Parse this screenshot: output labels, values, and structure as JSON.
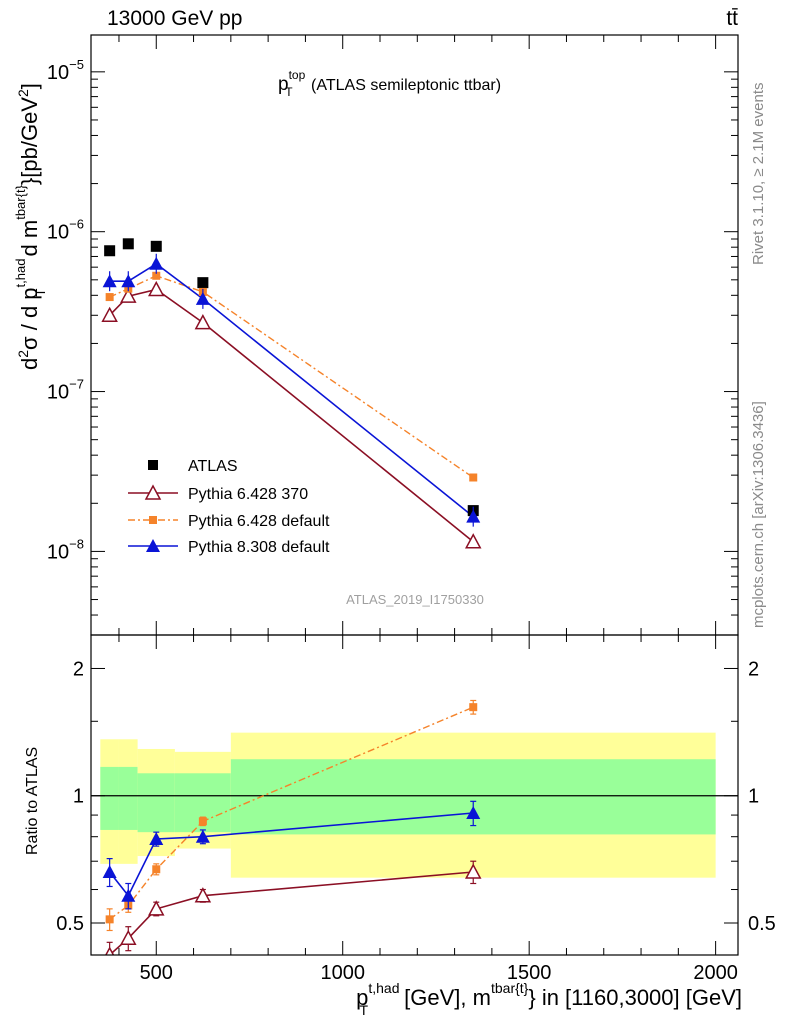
{
  "header": {
    "left": "13000 GeV pp",
    "right": "tt̄"
  },
  "side": {
    "top": "Rivet 3.1.10, ≥ 2.1M events",
    "bottom": "mcplots.cern.ch [arXiv:1306.3436]"
  },
  "title": {
    "main": "p",
    "sup": "top",
    "sub": "T",
    "rest": " (ATLAS semileptonic ttbar)"
  },
  "watermark": "ATLAS_2019_I1750330",
  "ylabel_main": {
    "p1": "d",
    "p1sup": "2",
    "p2": "σ /  d p",
    "p2sup": "t,had",
    "p2sub": "T",
    "p3": " d m",
    "p3sup": "tbar{t}",
    "p4": "}[pb/GeV",
    "p4sup": "2",
    "p5": "]"
  },
  "ylabel_ratio": "Ratio to ATLAS",
  "xlabel": {
    "p1": "p",
    "p1sup": "t,had",
    "p1sub": "T",
    "p2": " [GeV], m",
    "p2sup": "tbar{t}",
    "p3": "} in [1160,3000] [GeV]"
  },
  "main_ticks": [
    {
      "base": "10",
      "exp": "−5",
      "value": 1e-05
    },
    {
      "base": "10",
      "exp": "−6",
      "value": 1e-06
    },
    {
      "base": "10",
      "exp": "−7",
      "value": 1e-07
    },
    {
      "base": "10",
      "exp": "−8",
      "value": 1e-08
    }
  ],
  "ratio_ticks": [
    {
      "label": "2",
      "value": 2
    },
    {
      "label": "1",
      "value": 1
    },
    {
      "label": "0.5",
      "value": 0.5
    }
  ],
  "x_ticks": [
    {
      "label": "500",
      "value": 500
    },
    {
      "label": "1000",
      "value": 1000
    },
    {
      "label": "1500",
      "value": 1500
    },
    {
      "label": "2000",
      "value": 2000
    }
  ],
  "legend": [
    {
      "label": "ATLAS"
    },
    {
      "label": "Pythia 6.428 370"
    },
    {
      "label": "Pythia 6.428 default"
    },
    {
      "label": "Pythia 8.308 default"
    }
  ],
  "chart_data": {
    "type": "scatter",
    "xlim": [
      325,
      2060
    ],
    "ylim_main": [
      3e-09,
      1.7e-05
    ],
    "ylim_ratio": [
      0.42,
      2.4
    ],
    "x": [
      375,
      425,
      500,
      625,
      1350
    ],
    "bins": [
      [
        350,
        400
      ],
      [
        400,
        450
      ],
      [
        450,
        550
      ],
      [
        550,
        700
      ],
      [
        700,
        2000
      ]
    ],
    "series": [
      {
        "name": "ATLAS",
        "color": "#000000",
        "values": [
          7.6e-07,
          8.4e-07,
          8.1e-07,
          4.8e-07,
          1.8e-08
        ]
      },
      {
        "name": "Pythia 6.428 370",
        "color": "#8b0f24",
        "values": [
          3e-07,
          3.95e-07,
          4.35e-07,
          2.7e-07,
          1.15e-08
        ],
        "ratio": [
          0.42,
          0.46,
          0.54,
          0.58,
          0.66
        ],
        "ratio_err": [
          0.03,
          0.03,
          0.02,
          0.02,
          0.04
        ]
      },
      {
        "name": "Pythia 6.428 default",
        "color": "#f5832a",
        "values": [
          3.9e-07,
          4.4e-07,
          5.3e-07,
          4.2e-07,
          2.9e-08
        ],
        "ratio": [
          0.51,
          0.55,
          0.67,
          0.87,
          1.62
        ],
        "ratio_err": [
          0.03,
          0.02,
          0.02,
          0.02,
          0.06
        ]
      },
      {
        "name": "Pythia 8.308 default",
        "color": "#0a14d6",
        "values": [
          4.9e-07,
          4.9e-07,
          6.3e-07,
          3.8e-07,
          1.65e-08
        ],
        "ratio": [
          0.66,
          0.58,
          0.79,
          0.8,
          0.91
        ],
        "ratio_err": [
          0.05,
          0.04,
          0.03,
          0.03,
          0.06
        ]
      }
    ],
    "uncertainty_bands": {
      "green": [
        [
          0.83,
          1.17
        ],
        [
          0.83,
          1.17
        ],
        [
          0.82,
          1.13
        ],
        [
          0.82,
          1.13
        ],
        [
          0.81,
          1.22
        ]
      ],
      "yellow": [
        [
          0.69,
          1.36
        ],
        [
          0.69,
          1.36
        ],
        [
          0.72,
          1.29
        ],
        [
          0.75,
          1.27
        ],
        [
          0.64,
          1.41
        ]
      ]
    }
  }
}
